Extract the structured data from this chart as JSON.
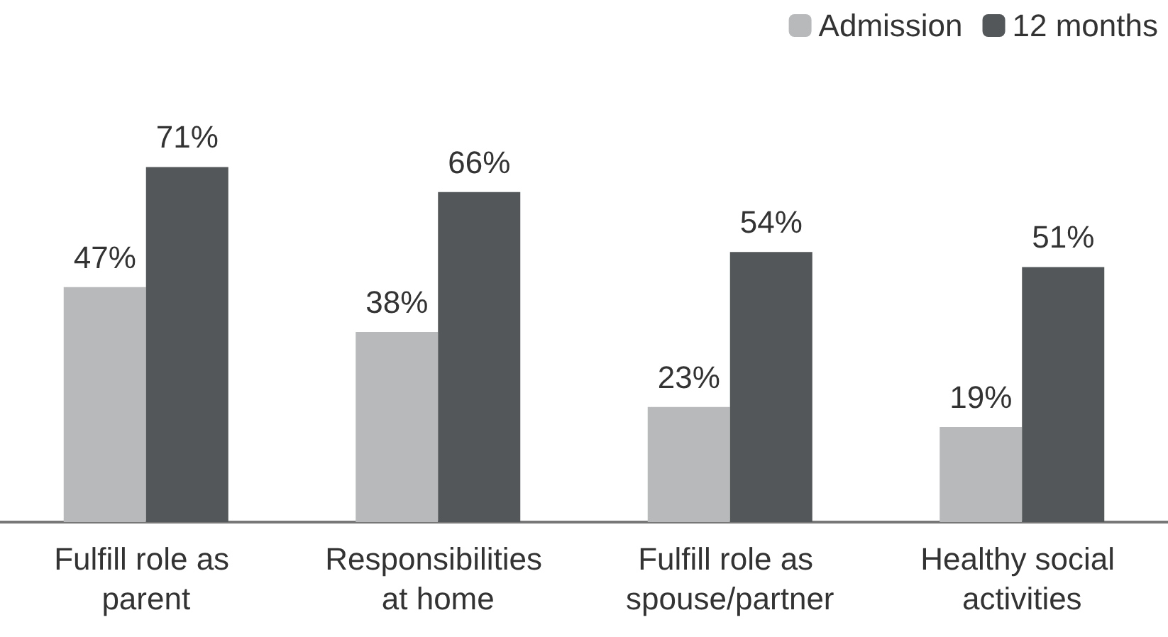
{
  "chart_data": {
    "type": "bar",
    "categories": [
      "Fulfill role as parent",
      "Responsibilities at home",
      "Fulfill role as spouse/partner",
      "Healthy social activities"
    ],
    "series": [
      {
        "name": "Admission",
        "color": "#b7b9ba",
        "values": [
          47,
          38,
          23,
          19
        ],
        "value_labels": [
          "47%",
          "38%",
          "23%",
          "19%"
        ]
      },
      {
        "name": "12 months",
        "color": "#54575a",
        "values": [
          71,
          66,
          54,
          51
        ],
        "value_labels": [
          "71%",
          "66%",
          "54%",
          "51%"
        ]
      }
    ],
    "legend": "top right",
    "tick_labels": "x"
  }
}
